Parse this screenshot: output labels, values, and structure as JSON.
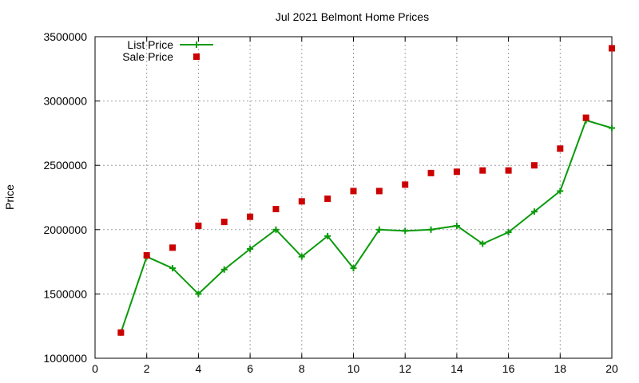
{
  "chart_data": {
    "type": "line",
    "title": "Jul 2021 Belmont Home Prices",
    "xlabel": "",
    "ylabel": "Price",
    "xlim": [
      0,
      20
    ],
    "ylim": [
      1000000,
      3500000
    ],
    "xticks": [
      0,
      2,
      4,
      6,
      8,
      10,
      12,
      14,
      16,
      18,
      20
    ],
    "yticks": [
      1000000,
      1500000,
      2000000,
      2500000,
      3000000,
      3500000
    ],
    "grid": true,
    "legend_position": "top-left",
    "x": [
      1,
      2,
      3,
      4,
      5,
      6,
      7,
      8,
      9,
      10,
      11,
      12,
      13,
      14,
      15,
      16,
      17,
      18,
      19,
      20
    ],
    "series": [
      {
        "name": "List Price",
        "style": "line+cross",
        "color": "#0a9a0a",
        "values": [
          1200000,
          1790000,
          1700000,
          1500000,
          1690000,
          1850000,
          2000000,
          1790000,
          1950000,
          1700000,
          2000000,
          1990000,
          2000000,
          2030000,
          1890000,
          1980000,
          2140000,
          2300000,
          2850000,
          2790000
        ]
      },
      {
        "name": "Sale Price",
        "style": "square",
        "color": "#cc0000",
        "values": [
          1200000,
          1800000,
          1860000,
          2030000,
          2060000,
          2100000,
          2160000,
          2220000,
          2240000,
          2300000,
          2300000,
          2350000,
          2440000,
          2450000,
          2460000,
          2460000,
          2500000,
          2630000,
          2870000,
          3410000
        ]
      }
    ]
  }
}
